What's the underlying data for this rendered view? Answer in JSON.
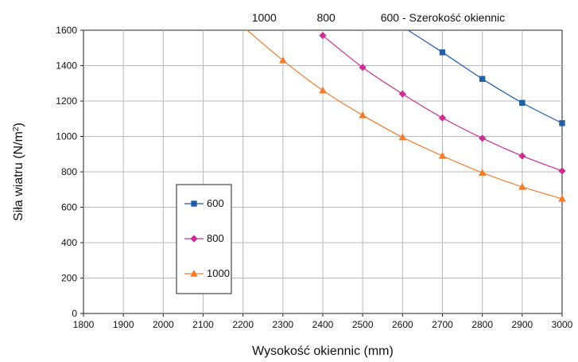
{
  "chart_data": {
    "type": "line",
    "xlabel": "Wysokość okiennic (mm)",
    "ylabel_main": "Siła wiatru (N/m",
    "ylabel_sup": "2",
    "ylabel_close": ")",
    "xlim": [
      1800,
      3000
    ],
    "ylim": [
      0,
      1600
    ],
    "x_ticks": [
      "1800",
      "1900",
      "2000",
      "2100",
      "2200",
      "2300",
      "2400",
      "2500",
      "2600",
      "2700",
      "2800",
      "2900",
      "3000"
    ],
    "y_ticks": [
      "0",
      "200",
      "400",
      "600",
      "800",
      "1000",
      "1200",
      "1400",
      "1600"
    ],
    "grid": true,
    "legend_position": "left",
    "top_labels": [
      {
        "text": "1000",
        "x": 2222
      },
      {
        "text": "800",
        "x": 2385
      },
      {
        "text": "600 - Szerokość okiennic",
        "x": 2545
      }
    ],
    "series": [
      {
        "name": "600",
        "color": "#1f5fa8",
        "marker": "square",
        "x": [
          2600,
          2700,
          2800,
          2900,
          3000
        ],
        "y": [
          1620,
          1475,
          1325,
          1190,
          1075
        ]
      },
      {
        "name": "800",
        "color": "#cc2f93",
        "marker": "diamond",
        "x": [
          2400,
          2500,
          2600,
          2700,
          2800,
          2900,
          3000
        ],
        "y": [
          1570,
          1390,
          1240,
          1105,
          990,
          890,
          805
        ]
      },
      {
        "name": "1000",
        "color": "#f07d2c",
        "marker": "triangle",
        "x": [
          2200,
          2300,
          2400,
          2500,
          2600,
          2700,
          2800,
          2900,
          3000
        ],
        "y": [
          1620,
          1430,
          1260,
          1120,
          995,
          890,
          795,
          715,
          648
        ]
      }
    ]
  }
}
